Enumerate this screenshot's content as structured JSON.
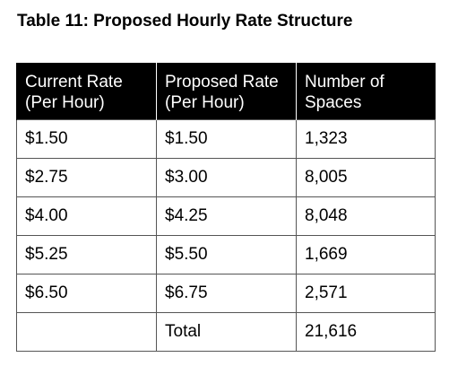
{
  "title": "Table 11: Proposed Hourly Rate Structure",
  "table": {
    "headers": [
      [
        "Current Rate",
        "(Per Hour)"
      ],
      [
        "Proposed Rate",
        "(Per Hour)"
      ],
      [
        "Number of",
        "Spaces"
      ]
    ],
    "rows": [
      [
        "$1.50",
        "$1.50",
        "1,323"
      ],
      [
        "$2.75",
        "$3.00",
        "8,005"
      ],
      [
        "$4.00",
        "$4.25",
        "8,048"
      ],
      [
        "$5.25",
        "$5.50",
        "1,669"
      ],
      [
        "$6.50",
        "$6.75",
        "2,571"
      ],
      [
        "",
        "Total",
        "21,616"
      ]
    ]
  }
}
